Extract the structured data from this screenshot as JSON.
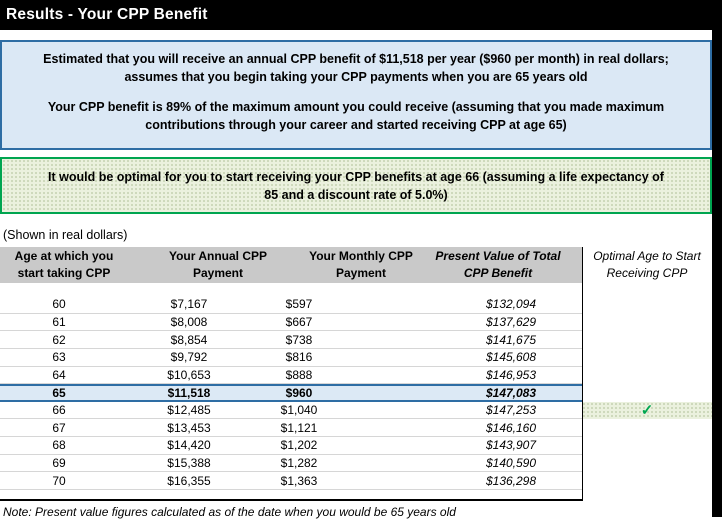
{
  "title": "Results - Your CPP Benefit",
  "colors": {
    "title_bar_bg": "#000000",
    "blue_box_fill": "#dbe8f5",
    "blue_box_border": "#2e6da4",
    "green_box_fill": "#ebf1de",
    "green_box_border": "#00a550",
    "header_gray": "#c9c9c9",
    "highlight_row_fill": "#dce9f5",
    "highlight_row_border": "#2e6da4",
    "checkmark_green": "#00a650"
  },
  "summary": {
    "estimate_text": "Estimated that you will receive an annual CPP benefit of $11,518 per year ($960 per month) in real dollars; assumes that you begin taking your CPP payments when you are 65 years old",
    "max_percent_text": "Your CPP benefit is 89% of the maximum amount you could receive (assuming that you made maximum contributions through your career and started receiving CPP at age 65)",
    "optimal_text": "It would be optimal for you to start receiving your CPP benefits at age 66 (assuming a life expectancy of 85 and a discount rate of 5.0%)"
  },
  "table": {
    "caption": "(Shown in real dollars)",
    "col_age": "Age at which you\nstart taking CPP",
    "col_annual": "Your Annual CPP\nPayment",
    "col_monthly": "Your Monthly CPP\nPayment",
    "col_pv": "Present Value of Total\nCPP Benefit",
    "col_optimal": "Optimal Age to Start\nReceiving CPP",
    "checkmark": "✓",
    "rows": [
      {
        "age": "60",
        "annual": "$7,167",
        "monthly": "$597",
        "pv": "$132,094",
        "highlight": false,
        "optimal": false
      },
      {
        "age": "61",
        "annual": "$8,008",
        "monthly": "$667",
        "pv": "$137,629",
        "highlight": false,
        "optimal": false
      },
      {
        "age": "62",
        "annual": "$8,854",
        "monthly": "$738",
        "pv": "$141,675",
        "highlight": false,
        "optimal": false
      },
      {
        "age": "63",
        "annual": "$9,792",
        "monthly": "$816",
        "pv": "$145,608",
        "highlight": false,
        "optimal": false
      },
      {
        "age": "64",
        "annual": "$10,653",
        "monthly": "$888",
        "pv": "$146,953",
        "highlight": false,
        "optimal": false
      },
      {
        "age": "65",
        "annual": "$11,518",
        "monthly": "$960",
        "pv": "$147,083",
        "highlight": true,
        "optimal": false
      },
      {
        "age": "66",
        "annual": "$12,485",
        "monthly": "$1,040",
        "pv": "$147,253",
        "highlight": false,
        "optimal": true
      },
      {
        "age": "67",
        "annual": "$13,453",
        "monthly": "$1,121",
        "pv": "$146,160",
        "highlight": false,
        "optimal": false
      },
      {
        "age": "68",
        "annual": "$14,420",
        "monthly": "$1,202",
        "pv": "$143,907",
        "highlight": false,
        "optimal": false
      },
      {
        "age": "69",
        "annual": "$15,388",
        "monthly": "$1,282",
        "pv": "$140,590",
        "highlight": false,
        "optimal": false
      },
      {
        "age": "70",
        "annual": "$16,355",
        "monthly": "$1,363",
        "pv": "$136,298",
        "highlight": false,
        "optimal": false
      }
    ],
    "note": "Note: Present value figures calculated as of the date when you would be 65 years old"
  }
}
